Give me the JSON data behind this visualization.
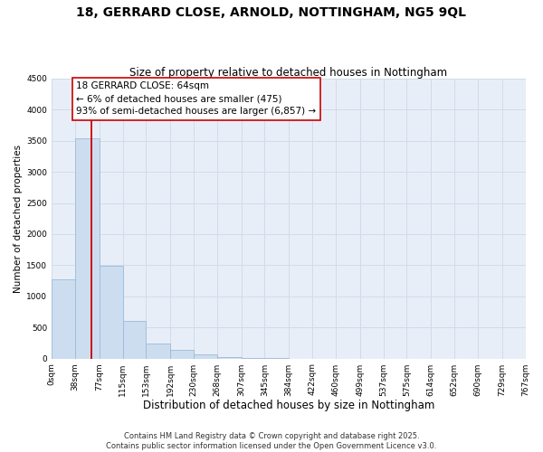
{
  "title": "18, GERRARD CLOSE, ARNOLD, NOTTINGHAM, NG5 9QL",
  "subtitle": "Size of property relative to detached houses in Nottingham",
  "xlabel": "Distribution of detached houses by size in Nottingham",
  "ylabel": "Number of detached properties",
  "bar_edges": [
    0,
    38,
    77,
    115,
    153,
    192,
    230,
    268,
    307,
    345,
    384,
    422,
    460,
    499,
    537,
    575,
    614,
    652,
    690,
    729,
    767
  ],
  "bar_heights": [
    1280,
    3540,
    1490,
    600,
    245,
    135,
    70,
    30,
    5,
    2,
    1,
    0,
    0,
    0,
    0,
    0,
    0,
    0,
    0,
    0
  ],
  "bar_color": "#ccddf0",
  "bar_edge_color": "#9bbbd8",
  "vline_x": 64,
  "vline_color": "#cc0000",
  "ylim": [
    0,
    4500
  ],
  "xlim": [
    0,
    767
  ],
  "annotation_title": "18 GERRARD CLOSE: 64sqm",
  "annotation_line1": "← 6% of detached houses are smaller (475)",
  "annotation_line2": "93% of semi-detached houses are larger (6,857) →",
  "annotation_box_color": "#ffffff",
  "annotation_box_edge": "#cc0000",
  "tick_labels": [
    "0sqm",
    "38sqm",
    "77sqm",
    "115sqm",
    "153sqm",
    "192sqm",
    "230sqm",
    "268sqm",
    "307sqm",
    "345sqm",
    "384sqm",
    "422sqm",
    "460sqm",
    "499sqm",
    "537sqm",
    "575sqm",
    "614sqm",
    "652sqm",
    "690sqm",
    "729sqm",
    "767sqm"
  ],
  "ytick_values": [
    0,
    500,
    1000,
    1500,
    2000,
    2500,
    3000,
    3500,
    4000,
    4500
  ],
  "footer1": "Contains HM Land Registry data © Crown copyright and database right 2025.",
  "footer2": "Contains public sector information licensed under the Open Government Licence v3.0.",
  "title_fontsize": 10,
  "subtitle_fontsize": 8.5,
  "xlabel_fontsize": 8.5,
  "ylabel_fontsize": 7.5,
  "tick_fontsize": 6.5,
  "annotation_fontsize": 7.5,
  "footer_fontsize": 6.0,
  "grid_color": "#d0dcea",
  "bg_color": "#e8eef8"
}
